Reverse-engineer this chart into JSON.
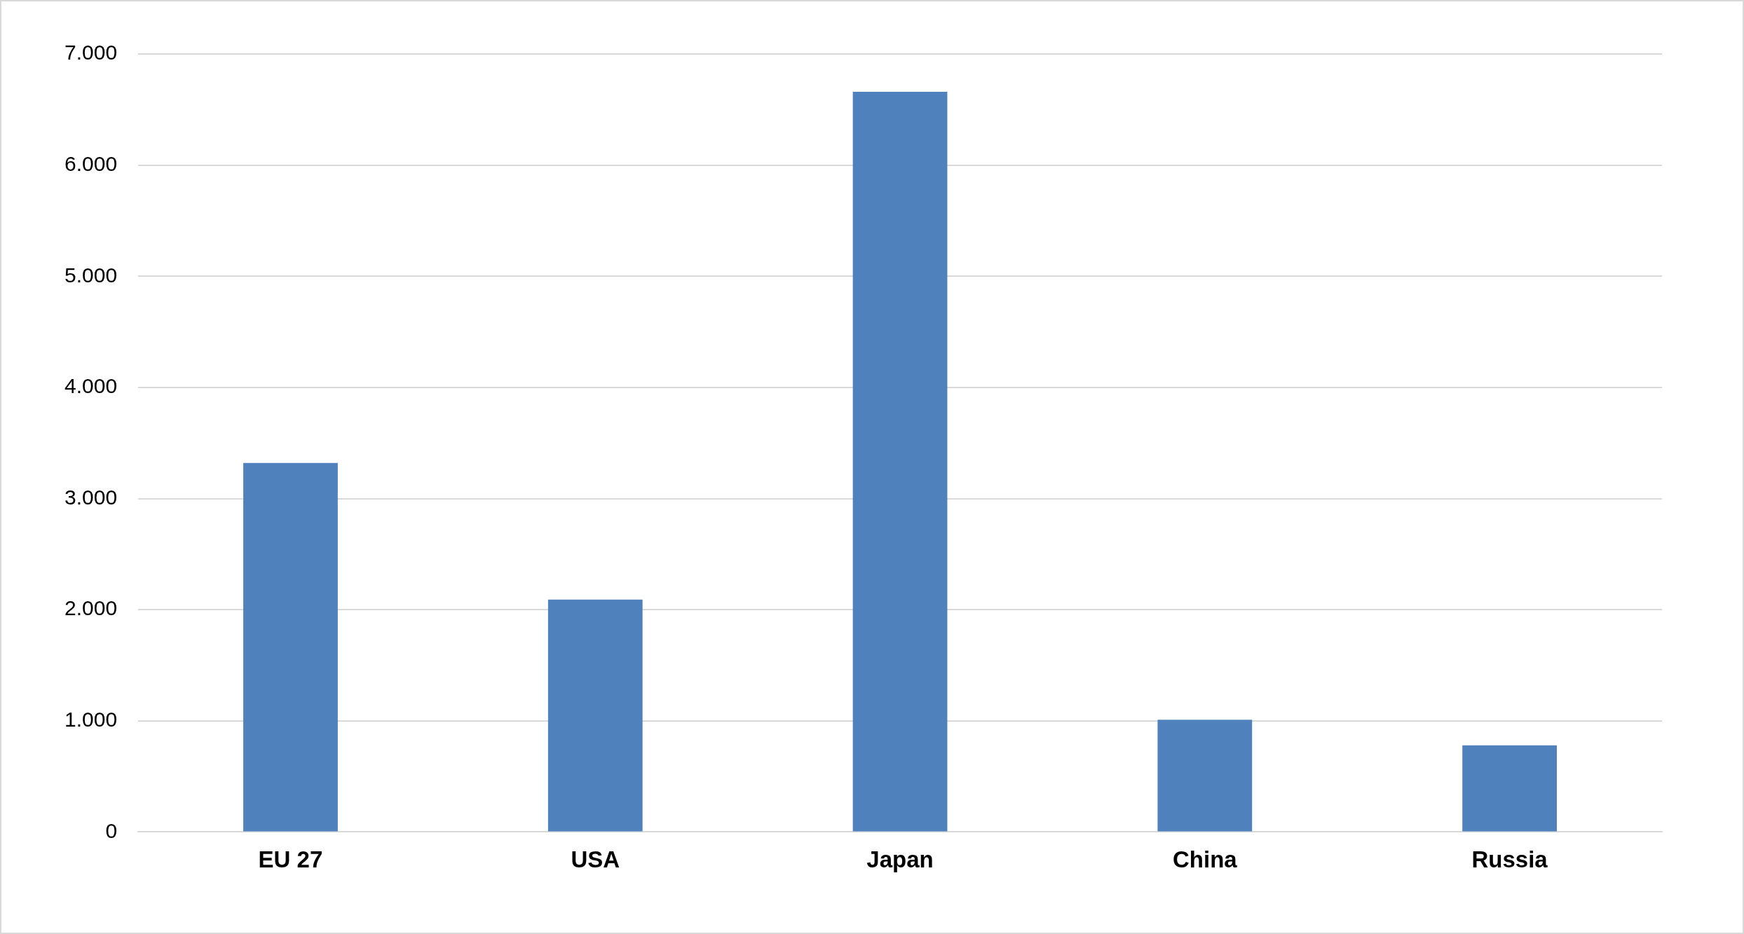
{
  "chart_data": {
    "type": "bar",
    "categories": [
      "EU 27",
      "USA",
      "Japan",
      "China",
      "Russia"
    ],
    "values": [
      3320,
      2090,
      6660,
      1010,
      780
    ],
    "color": "#4f81bd",
    "ylim": [
      0,
      7000
    ],
    "yticks": [
      0,
      {
        "value": 1000,
        "label": "1.000"
      },
      {
        "value": 2000,
        "label": "2.000"
      },
      {
        "value": 3000,
        "label": "3.000"
      },
      {
        "value": 4000,
        "label": "4.000"
      },
      {
        "value": 5000,
        "label": "5.000"
      },
      {
        "value": 6000,
        "label": "6.000"
      },
      {
        "value": 7000,
        "label": "7.000"
      }
    ],
    "grid": "y"
  }
}
